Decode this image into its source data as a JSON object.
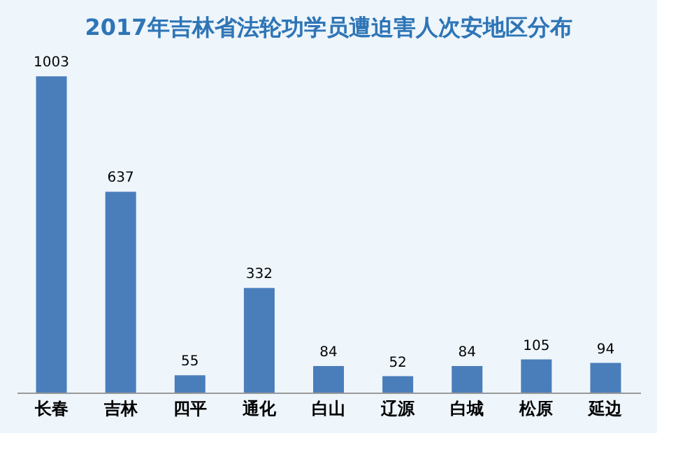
{
  "chart_data": {
    "type": "bar",
    "title": "2017年吉林省法轮功学员遭迫害人次安地区分布",
    "categories": [
      "长春",
      "吉林",
      "四平",
      "通化",
      "白山",
      "辽源",
      "白城",
      "松原",
      "延边"
    ],
    "values": [
      1003,
      637,
      55,
      332,
      84,
      52,
      84,
      105,
      94
    ],
    "color": "#4a7ebb",
    "data_labels": true,
    "grid": false
  }
}
